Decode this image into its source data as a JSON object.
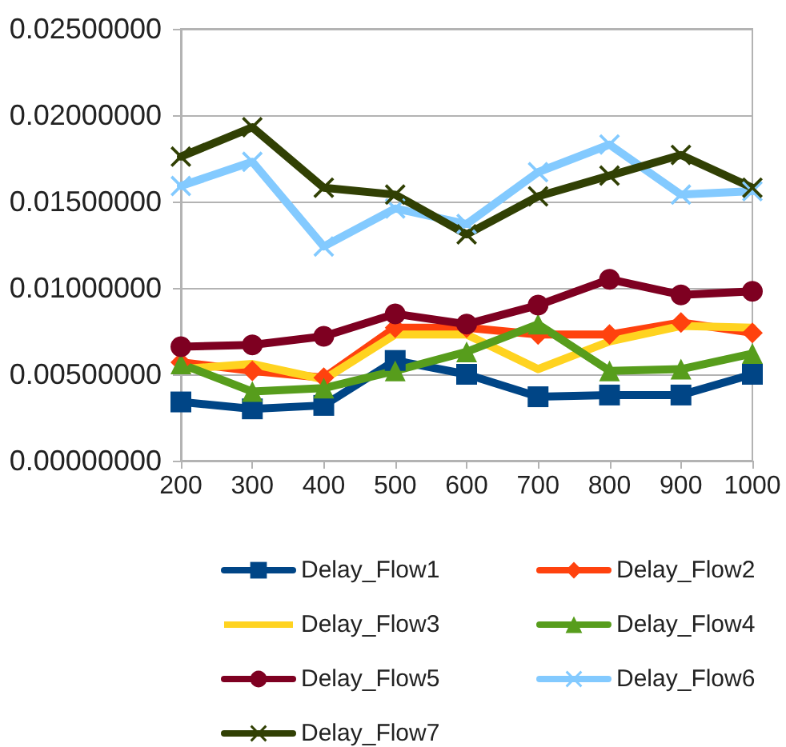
{
  "chart_data": {
    "type": "line",
    "x": [
      200,
      300,
      400,
      500,
      600,
      700,
      800,
      900,
      1000
    ],
    "xlim": [
      200,
      1000
    ],
    "xticks": [
      200,
      300,
      400,
      500,
      600,
      700,
      800,
      900,
      1000
    ],
    "ylim": [
      0,
      0.025
    ],
    "yticks": [
      {
        "value": 0,
        "label": "0.00000000"
      },
      {
        "value": 0.005,
        "label": "0.00500000"
      },
      {
        "value": 0.01,
        "label": "0.01000000"
      },
      {
        "value": 0.015,
        "label": "0.01500000"
      },
      {
        "value": 0.02,
        "label": "0.02000000"
      },
      {
        "value": 0.025,
        "label": "0.02500000"
      }
    ],
    "grid": "y",
    "legend": "bottom",
    "series": [
      {
        "name": "Delay_Flow1",
        "color": "#004586",
        "marker": "square",
        "values": [
          0.0034,
          0.003,
          0.0032,
          0.0058,
          0.005,
          0.0037,
          0.0038,
          0.0038,
          0.005
        ]
      },
      {
        "name": "Delay_Flow2",
        "color": "#ff420e",
        "marker": "diamond",
        "values": [
          0.0057,
          0.0052,
          0.0048,
          0.0077,
          0.0077,
          0.0073,
          0.0073,
          0.008,
          0.0074
        ]
      },
      {
        "name": "Delay_Flow3",
        "color": "#ffd320",
        "marker": "none",
        "values": [
          0.0053,
          0.0056,
          0.0047,
          0.0073,
          0.0073,
          0.0053,
          0.0069,
          0.0078,
          0.0077
        ]
      },
      {
        "name": "Delay_Flow4",
        "color": "#579d1c",
        "marker": "triangle",
        "values": [
          0.0056,
          0.004,
          0.0042,
          0.0052,
          0.0063,
          0.0079,
          0.0052,
          0.0053,
          0.0062
        ]
      },
      {
        "name": "Delay_Flow5",
        "color": "#7e0021",
        "marker": "circle",
        "values": [
          0.0066,
          0.0067,
          0.0072,
          0.0085,
          0.0079,
          0.009,
          0.0105,
          0.0096,
          0.0098
        ]
      },
      {
        "name": "Delay_Flow6",
        "color": "#83caff",
        "marker": "cross",
        "values": [
          0.0159,
          0.0173,
          0.0124,
          0.0146,
          0.0137,
          0.0167,
          0.0183,
          0.0154,
          0.0156
        ]
      },
      {
        "name": "Delay_Flow7",
        "color": "#314004",
        "marker": "cross",
        "values": [
          0.0176,
          0.0193,
          0.0158,
          0.0154,
          0.0131,
          0.0153,
          0.0165,
          0.0177,
          0.0158
        ]
      }
    ]
  }
}
